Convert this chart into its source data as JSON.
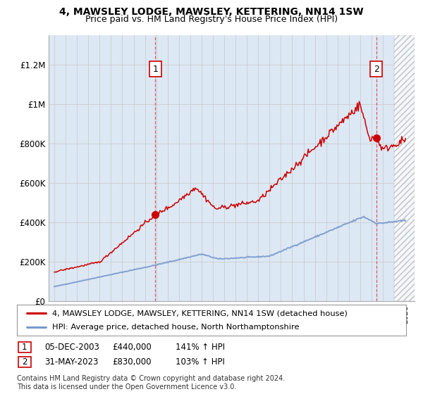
{
  "title": "4, MAWSLEY LODGE, MAWSLEY, KETTERING, NN14 1SW",
  "subtitle": "Price paid vs. HM Land Registry's House Price Index (HPI)",
  "title_fontsize": 10,
  "subtitle_fontsize": 9,
  "ylabel_ticks": [
    "£0",
    "£200K",
    "£400K",
    "£600K",
    "£800K",
    "£1M",
    "£1.2M"
  ],
  "ytick_values": [
    0,
    200000,
    400000,
    600000,
    800000,
    1000000,
    1200000
  ],
  "ylim": [
    0,
    1350000
  ],
  "xlim_start": 1994.5,
  "xlim_end": 2026.8,
  "transaction1_x": 2003.92,
  "transaction1_y": 440000,
  "transaction1_label": "1",
  "transaction2_x": 2023.42,
  "transaction2_y": 830000,
  "transaction2_label": "2",
  "legend_line1": "4, MAWSLEY LODGE, MAWSLEY, KETTERING, NN14 1SW (detached house)",
  "legend_line2": "HPI: Average price, detached house, North Northamptonshire",
  "table_row1": [
    "1",
    "05-DEC-2003",
    "£440,000",
    "141% ↑ HPI"
  ],
  "table_row2": [
    "2",
    "31-MAY-2023",
    "£830,000",
    "103% ↑ HPI"
  ],
  "footer": "Contains HM Land Registry data © Crown copyright and database right 2024.\nThis data is licensed under the Open Government Licence v3.0.",
  "color_red": "#cc0000",
  "color_blue": "#7799cc",
  "color_bg_blue": "#dde8f5",
  "color_dashed": "#dd4444",
  "background_color": "#ffffff",
  "grid_color": "#cccccc"
}
